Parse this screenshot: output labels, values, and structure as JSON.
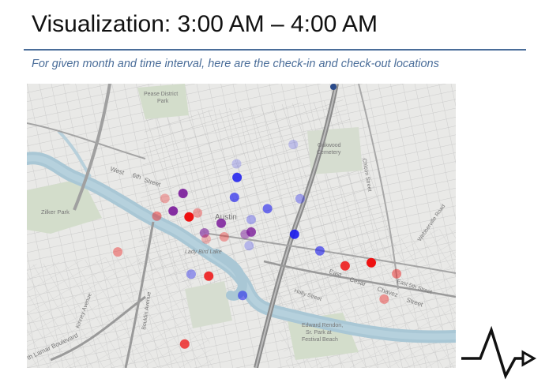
{
  "slide": {
    "title": "Visualization: 3:00 AM – 4:00 AM",
    "subtitle": "For given month and time interval, here are the check-in and check-out locations"
  },
  "map": {
    "labels": {
      "pease_1": "Pease District",
      "pease_2": "Park",
      "oakwood_1": "Oakwood",
      "oakwood_2": "Cemetery",
      "zilker": "Zilker Park",
      "austin": "Austin",
      "lady_bird": "Lady Bird Lake",
      "west_6th_1": "West",
      "west_6th_2": "6th",
      "west_6th_3": "Street",
      "chicon": "Chicon Street",
      "webberville": "Webberville Road",
      "east_5th": "East 5th Street",
      "cesar_1": "East",
      "cesar_2": "Cesar",
      "cesar_3": "Chavez",
      "cesar_4": "Street",
      "holly": "Holly Street",
      "edward_1": "Edward Rendon,",
      "edward_2": "Sr. Park at",
      "edward_3": "Festival Beach",
      "kinney": "Kinney Avenue",
      "bouldin": "Bouldin Avenue",
      "lamar": "th Lamar Boulevard"
    },
    "colors": {
      "check_in": "#ee1111",
      "check_out": "#1a1aee",
      "both": "#7a1a9a",
      "water": "#a8c8d6",
      "park": "#cfdcc8"
    },
    "markers": [
      {
        "kind": "check_out",
        "x": 0.49,
        "y": 0.33,
        "opacity": 0.85
      },
      {
        "kind": "check_out",
        "x": 0.484,
        "y": 0.4,
        "opacity": 0.65
      },
      {
        "kind": "check_out",
        "x": 0.561,
        "y": 0.44,
        "opacity": 0.6
      },
      {
        "kind": "check_out",
        "x": 0.637,
        "y": 0.405,
        "opacity": 0.35
      },
      {
        "kind": "check_out",
        "x": 0.523,
        "y": 0.478,
        "opacity": 0.3
      },
      {
        "kind": "check_out",
        "x": 0.624,
        "y": 0.53,
        "opacity": 0.9
      },
      {
        "kind": "check_out",
        "x": 0.683,
        "y": 0.588,
        "opacity": 0.6
      },
      {
        "kind": "check_out",
        "x": 0.518,
        "y": 0.57,
        "opacity": 0.25
      },
      {
        "kind": "check_out",
        "x": 0.383,
        "y": 0.67,
        "opacity": 0.4
      },
      {
        "kind": "check_out",
        "x": 0.503,
        "y": 0.745,
        "opacity": 0.55
      },
      {
        "kind": "check_out",
        "x": 0.621,
        "y": 0.214,
        "opacity": 0.2
      },
      {
        "kind": "check_out",
        "x": 0.489,
        "y": 0.282,
        "opacity": 0.2
      },
      {
        "kind": "both",
        "x": 0.364,
        "y": 0.386,
        "opacity": 0.9
      },
      {
        "kind": "both",
        "x": 0.341,
        "y": 0.448,
        "opacity": 0.9
      },
      {
        "kind": "both",
        "x": 0.453,
        "y": 0.491,
        "opacity": 0.85
      },
      {
        "kind": "both",
        "x": 0.523,
        "y": 0.522,
        "opacity": 0.8
      },
      {
        "kind": "both",
        "x": 0.509,
        "y": 0.53,
        "opacity": 0.5
      },
      {
        "kind": "both",
        "x": 0.414,
        "y": 0.525,
        "opacity": 0.6
      },
      {
        "kind": "check_in",
        "x": 0.378,
        "y": 0.469,
        "opacity": 1.0
      },
      {
        "kind": "check_in",
        "x": 0.303,
        "y": 0.466,
        "opacity": 0.45
      },
      {
        "kind": "check_in",
        "x": 0.322,
        "y": 0.404,
        "opacity": 0.3
      },
      {
        "kind": "check_in",
        "x": 0.398,
        "y": 0.455,
        "opacity": 0.35
      },
      {
        "kind": "check_in",
        "x": 0.46,
        "y": 0.539,
        "opacity": 0.35
      },
      {
        "kind": "check_in",
        "x": 0.418,
        "y": 0.547,
        "opacity": 0.25
      },
      {
        "kind": "check_in",
        "x": 0.212,
        "y": 0.592,
        "opacity": 0.4
      },
      {
        "kind": "check_in",
        "x": 0.424,
        "y": 0.677,
        "opacity": 0.85
      },
      {
        "kind": "check_in",
        "x": 0.368,
        "y": 0.916,
        "opacity": 0.75
      },
      {
        "kind": "check_in",
        "x": 0.742,
        "y": 0.641,
        "opacity": 0.85
      },
      {
        "kind": "check_in",
        "x": 0.803,
        "y": 0.63,
        "opacity": 1.0
      },
      {
        "kind": "check_in",
        "x": 0.862,
        "y": 0.669,
        "opacity": 0.45
      },
      {
        "kind": "check_in",
        "x": 0.833,
        "y": 0.758,
        "opacity": 0.4
      }
    ]
  }
}
